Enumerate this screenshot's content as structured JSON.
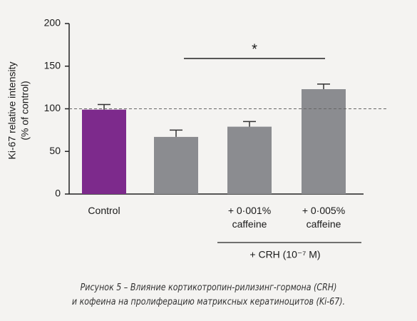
{
  "chart_data": {
    "type": "bar",
    "ylabel": [
      "Ki-67 relative intensity",
      "(% of control)"
    ],
    "categories": [
      "Control",
      null,
      "+ 0·001% caffeine",
      "+ 0·005% caffeine"
    ],
    "values": [
      99,
      67,
      79,
      123
    ],
    "errors": [
      6,
      8,
      6,
      6
    ],
    "colors": [
      "#7d2a8c",
      "#8b8c90",
      "#8b8c90",
      "#8b8c90"
    ],
    "reference_line": 100,
    "significance_label": "*",
    "group_label": "+ CRH (10⁻⁷ M)",
    "ylim": [
      0,
      200
    ],
    "yticks": [
      0,
      50,
      100,
      150,
      200
    ],
    "caption": [
      "Рисунок 5 – Влияние кортикотропин-рилизинг-гормона (CRH)",
      "и кофеина на пролиферацию матриксных кератиноцитов (Ki-67)."
    ]
  }
}
